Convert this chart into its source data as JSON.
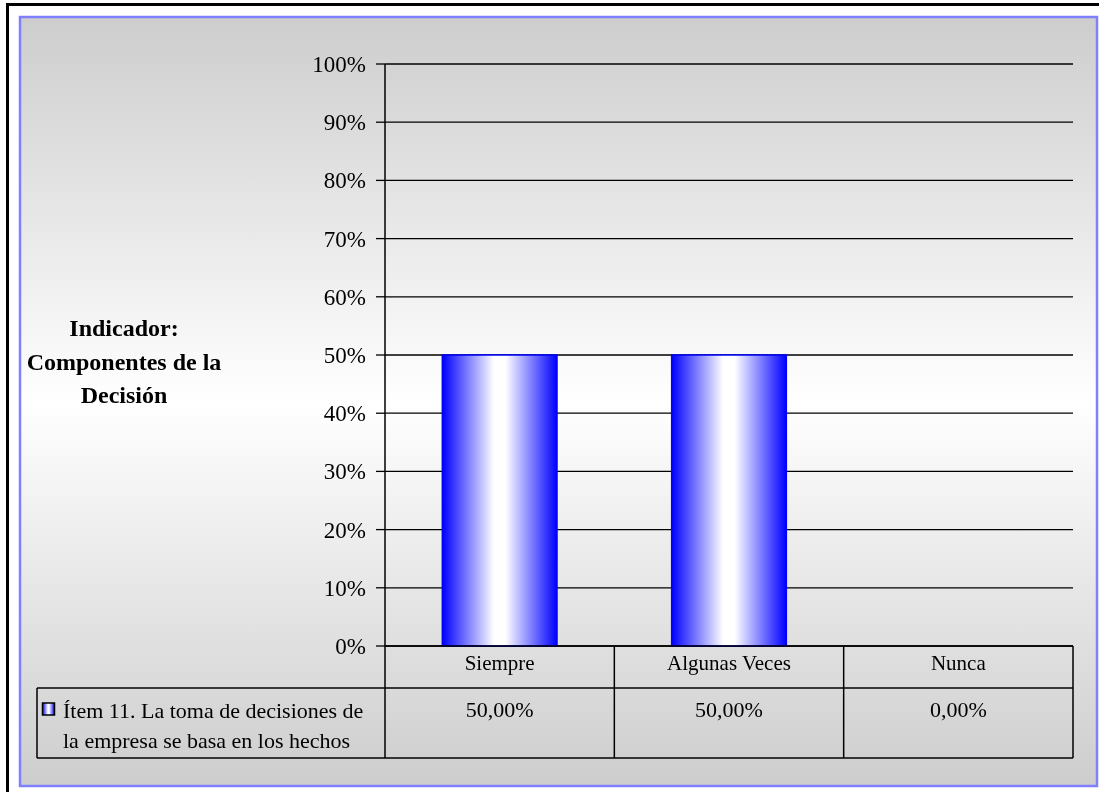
{
  "chart_data": {
    "type": "bar",
    "title": "Indicador: Componentes de la Decisión",
    "categories": [
      "Siempre",
      "Algunas Veces",
      "Nunca"
    ],
    "series": [
      {
        "name": "Ítem 11. La toma de decisiones de la empresa se basa en los hechos",
        "color": "#0000ff",
        "values": [
          50,
          50,
          0
        ],
        "value_labels": [
          "50,00%",
          "50,00%",
          "0,00%"
        ]
      }
    ],
    "ylim": [
      0,
      100
    ],
    "yticks": [
      {
        "value": 0,
        "label": "0%"
      },
      {
        "value": 10,
        "label": "10%"
      },
      {
        "value": 20,
        "label": "20%"
      },
      {
        "value": 30,
        "label": "30%"
      },
      {
        "value": 40,
        "label": "40%"
      },
      {
        "value": 50,
        "label": "50%"
      },
      {
        "value": 60,
        "label": "60%"
      },
      {
        "value": 70,
        "label": "70%"
      },
      {
        "value": 80,
        "label": "80%"
      },
      {
        "value": 90,
        "label": "90%"
      },
      {
        "value": 100,
        "label": "100%"
      }
    ],
    "grid": "y",
    "legend": "bottom left"
  }
}
